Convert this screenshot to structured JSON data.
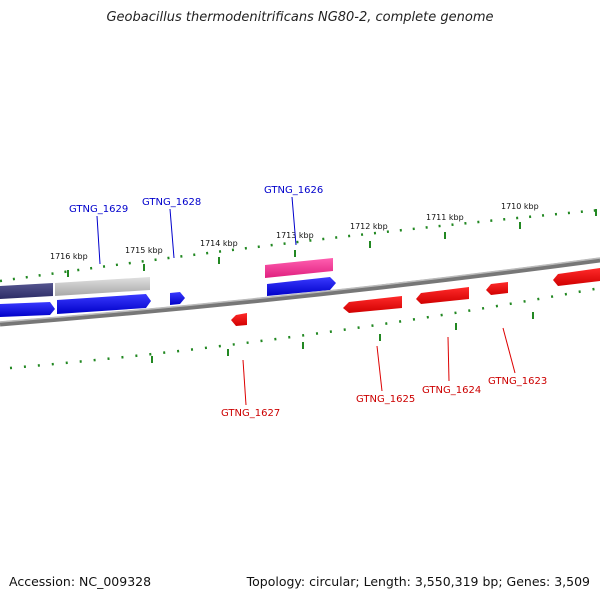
{
  "title": "Geobacillus thermodenitrificans NG80-2, complete genome",
  "accession": "Accession: NC_009328",
  "topology": "Topology: circular; Length: 3,550,319 bp; Genes: 3,509",
  "kbp_labels": [
    "1716 kbp",
    "1715 kbp",
    "1714 kbp",
    "1713 kbp",
    "1712 kbp",
    "1711 kbp",
    "1710 kbp"
  ],
  "gene_labels": {
    "gtng_1629": "GTNG_1629",
    "gtng_1628": "GTNG_1628",
    "gtng_1626": "GTNG_1626",
    "gtng_1627": "GTNG_1627",
    "gtng_1625": "GTNG_1625",
    "gtng_1624": "GTNG_1624",
    "gtng_1623": "GTNG_1623"
  },
  "colors": {
    "forward_gene": "#0000ee",
    "reverse_gene": "#ee0000",
    "tick": "#228822",
    "backbone": "#888888",
    "highlight": "#ff3399"
  }
}
